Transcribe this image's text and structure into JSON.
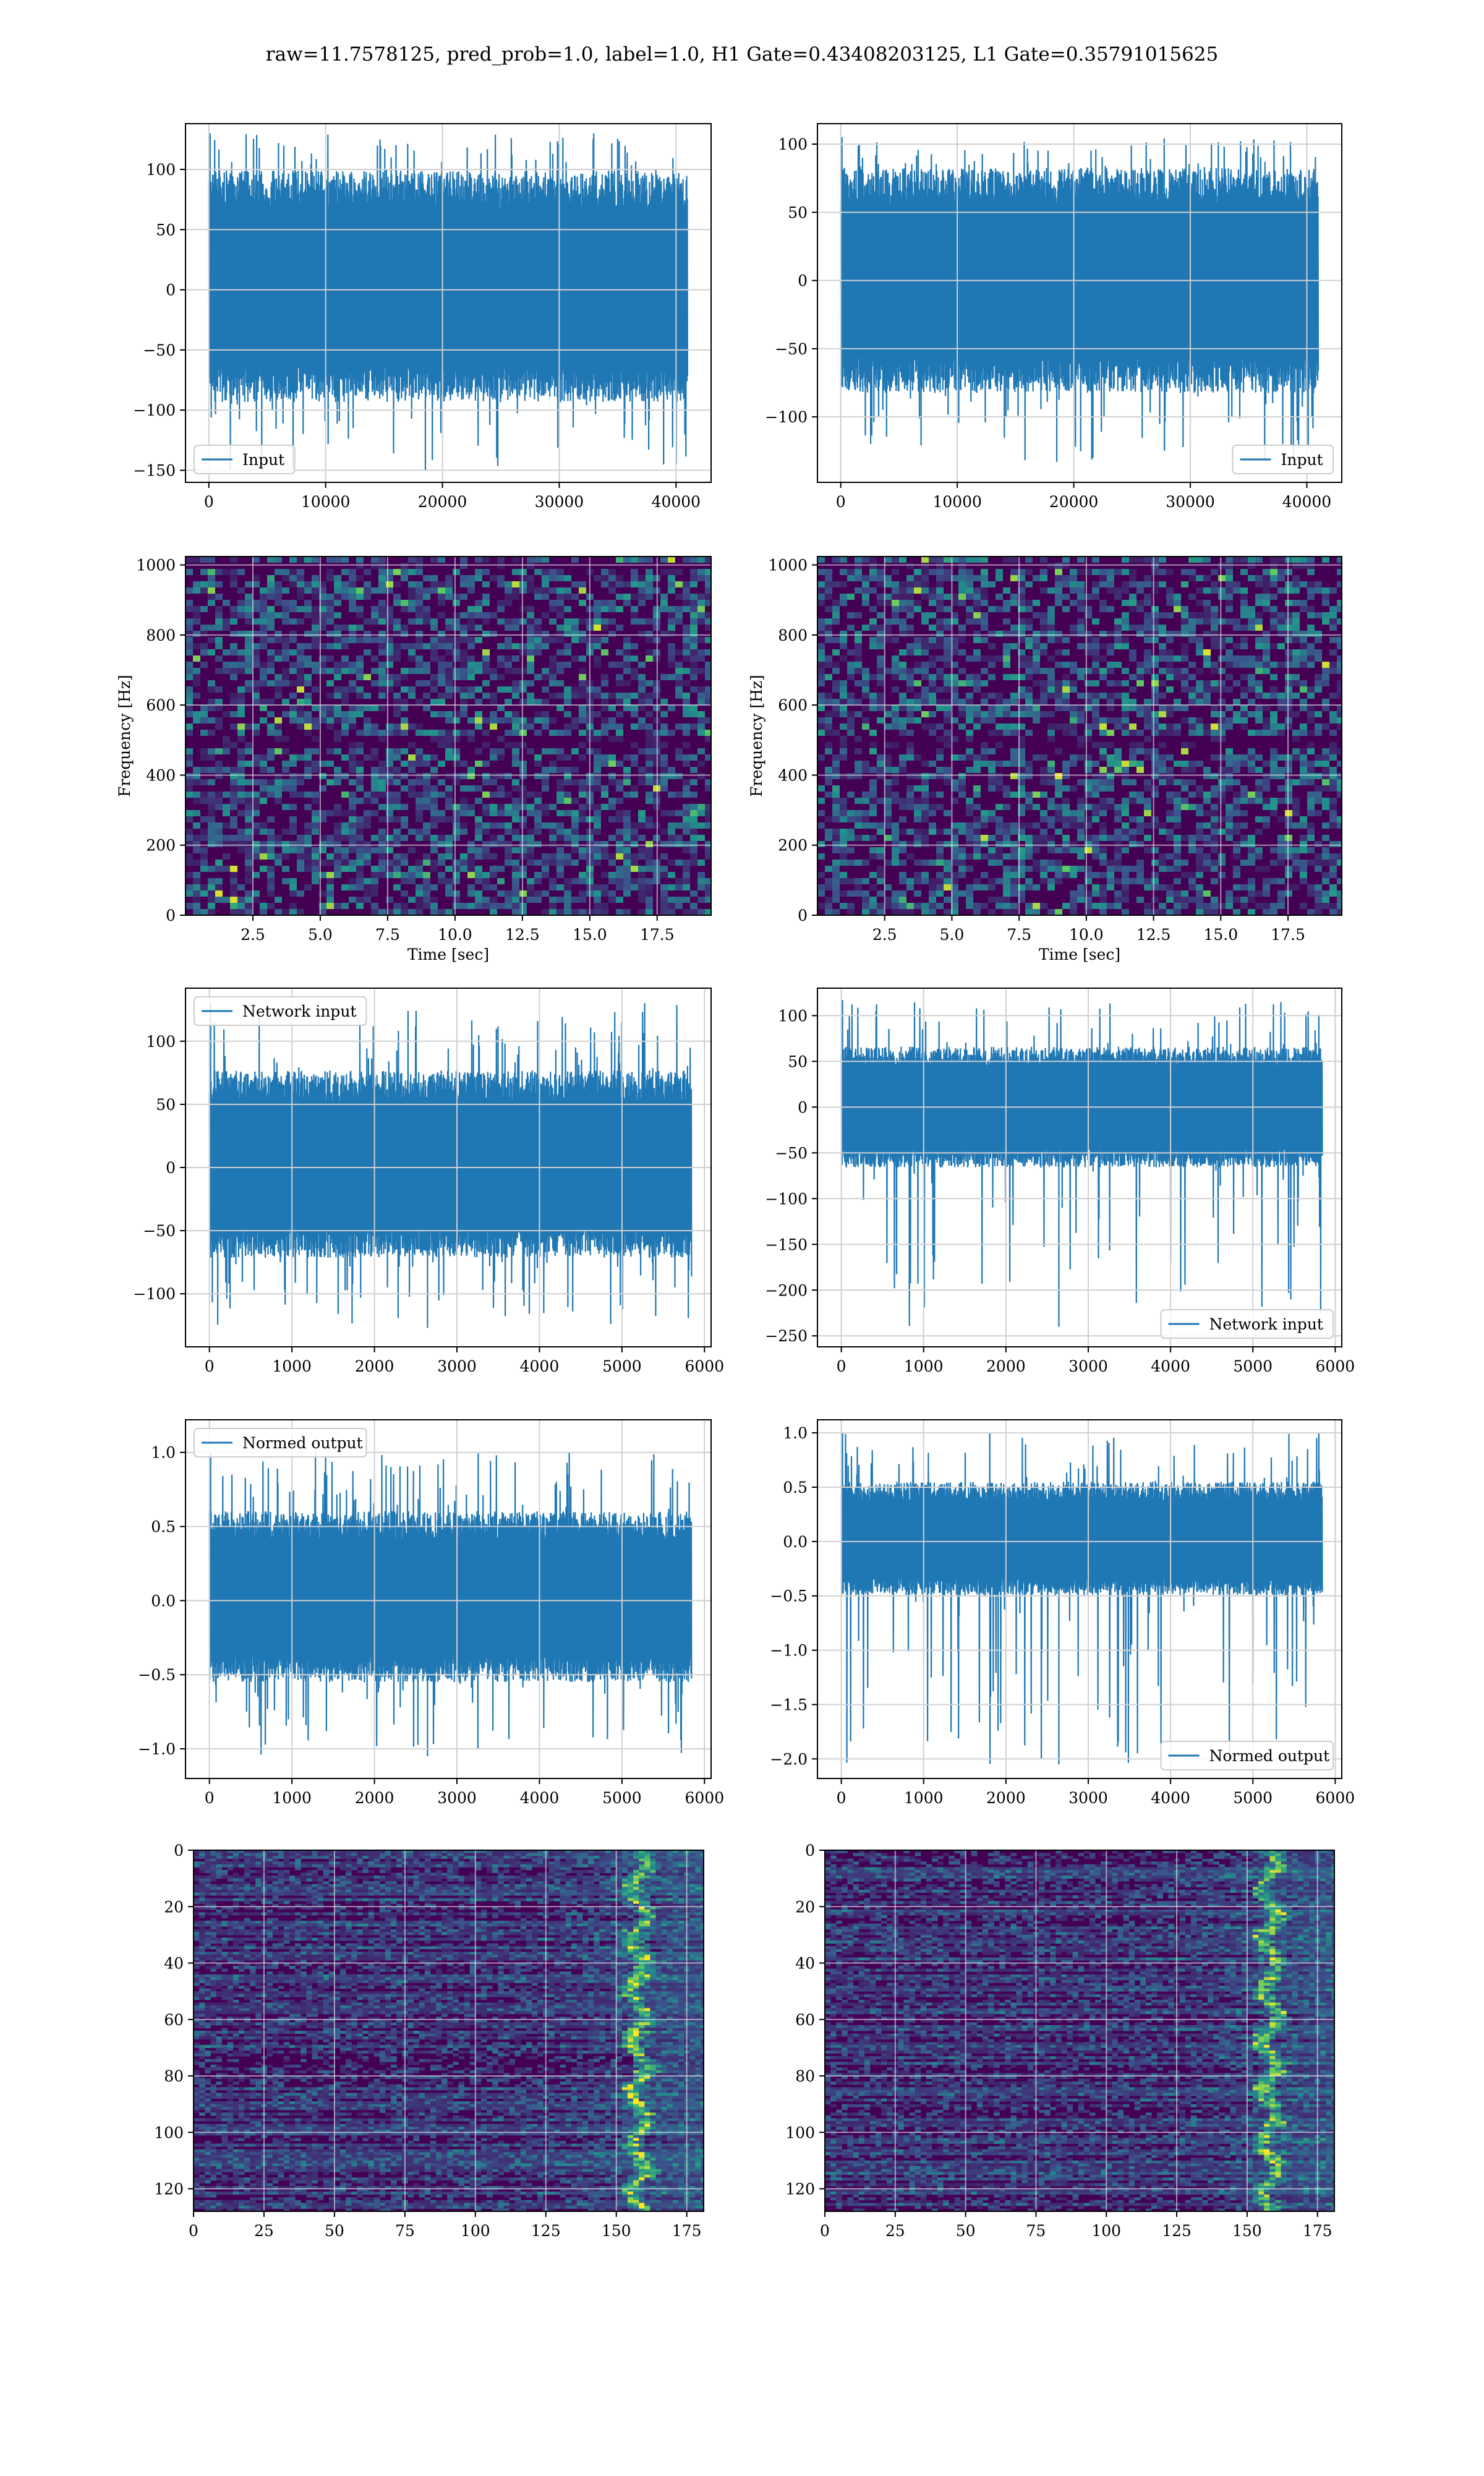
{
  "figure": {
    "suptitle": "raw=11.7578125, pred_prob=1.0, label=1.0, H1 Gate=0.43408203125, L1 Gate=0.35791015625"
  },
  "colors": {
    "line": "#1f77b4",
    "grid": "#d0d0d0",
    "viridis": [
      "#440154",
      "#3b528b",
      "#21918c",
      "#5ec962",
      "#fde725"
    ]
  },
  "chart_data": [
    {
      "id": "h1-input",
      "type": "line",
      "xlim": [
        -2000,
        43000
      ],
      "ylim": [
        -160,
        138
      ],
      "xticks": [
        0,
        10000,
        20000,
        30000,
        40000
      ],
      "yticks": [
        -150,
        -100,
        -50,
        0,
        50,
        100
      ],
      "legend": {
        "label": "Input",
        "loc": "lower-left"
      },
      "series": [
        {
          "x_range": [
            0,
            40960
          ],
          "band": [
            -85,
            90
          ],
          "extremes": [
            -150,
            130
          ]
        }
      ]
    },
    {
      "id": "l1-input",
      "type": "line",
      "xlim": [
        -2000,
        43000
      ],
      "ylim": [
        -148,
        115
      ],
      "xticks": [
        0,
        10000,
        20000,
        30000,
        40000
      ],
      "yticks": [
        -100,
        -50,
        0,
        50,
        100
      ],
      "legend": {
        "label": "Input",
        "loc": "lower-right"
      },
      "series": [
        {
          "x_range": [
            0,
            40960
          ],
          "band": [
            -75,
            75
          ],
          "extremes": [
            -133,
            105
          ]
        }
      ]
    },
    {
      "id": "h1-spectrogram",
      "type": "heatmap",
      "xlim": [
        0,
        19.5
      ],
      "ylim": [
        0,
        1024
      ],
      "xticks": [
        2.5,
        5.0,
        7.5,
        10.0,
        12.5,
        15.0,
        17.5
      ],
      "yticks": [
        0,
        200,
        400,
        600,
        800,
        1000
      ],
      "xlabel": "Time [sec]",
      "ylabel": "Frequency [Hz]"
    },
    {
      "id": "l1-spectrogram",
      "type": "heatmap",
      "xlim": [
        0,
        19.5
      ],
      "ylim": [
        0,
        1024
      ],
      "xticks": [
        2.5,
        5.0,
        7.5,
        10.0,
        12.5,
        15.0,
        17.5
      ],
      "yticks": [
        0,
        200,
        400,
        600,
        800,
        1000
      ],
      "xlabel": "Time [sec]",
      "ylabel": "Frequency [Hz]"
    },
    {
      "id": "h1-network-input",
      "type": "line",
      "xlim": [
        -290,
        6080
      ],
      "ylim": [
        -142,
        142
      ],
      "xticks": [
        0,
        1000,
        2000,
        3000,
        4000,
        5000,
        6000
      ],
      "yticks": [
        -100,
        -50,
        0,
        50,
        100
      ],
      "legend": {
        "label": "Network input",
        "loc": "upper-left"
      },
      "series": [
        {
          "x_range": [
            0,
            5840
          ],
          "band": [
            -65,
            70
          ],
          "extremes": [
            -127,
            131
          ]
        }
      ]
    },
    {
      "id": "l1-network-input",
      "type": "line",
      "xlim": [
        -290,
        6080
      ],
      "ylim": [
        -262,
        130
      ],
      "xticks": [
        0,
        1000,
        2000,
        3000,
        4000,
        5000,
        6000
      ],
      "yticks": [
        -250,
        -200,
        -150,
        -100,
        -50,
        0,
        50,
        100
      ],
      "legend": {
        "label": "Network input",
        "loc": "lower-right"
      },
      "series": [
        {
          "x_range": [
            0,
            5840
          ],
          "band": [
            -60,
            60
          ],
          "extremes": [
            -240,
            117
          ]
        }
      ]
    },
    {
      "id": "h1-normed-output",
      "type": "line",
      "xlim": [
        -290,
        6080
      ],
      "ylim": [
        -1.2,
        1.22
      ],
      "xticks": [
        0,
        1000,
        2000,
        3000,
        4000,
        5000,
        6000
      ],
      "yticks": [
        -1.0,
        -0.5,
        0.0,
        0.5,
        1.0
      ],
      "legend": {
        "label": "Normed output",
        "loc": "upper-left"
      },
      "series": [
        {
          "x_range": [
            0,
            5840
          ],
          "band": [
            -0.5,
            0.55
          ],
          "extremes": [
            -1.05,
            1.0
          ]
        }
      ]
    },
    {
      "id": "l1-normed-output",
      "type": "line",
      "xlim": [
        -290,
        6080
      ],
      "ylim": [
        -2.18,
        1.12
      ],
      "xticks": [
        0,
        1000,
        2000,
        3000,
        4000,
        5000,
        6000
      ],
      "yticks": [
        -2.0,
        -1.5,
        -1.0,
        -0.5,
        0.0,
        0.5,
        1.0
      ],
      "legend": {
        "label": "Normed output",
        "loc": "lower-right"
      },
      "series": [
        {
          "x_range": [
            0,
            5840
          ],
          "band": [
            -0.45,
            0.5
          ],
          "extremes": [
            -2.05,
            1.0
          ]
        }
      ]
    },
    {
      "id": "h1-network-image",
      "type": "heatmap",
      "xlim": [
        0,
        181
      ],
      "ylim": [
        128,
        0
      ],
      "xticks": [
        0,
        25,
        50,
        75,
        100,
        125,
        150,
        175
      ],
      "yticks": [
        0,
        20,
        40,
        60,
        80,
        100,
        120
      ],
      "ridge_x": 157
    },
    {
      "id": "l1-network-image",
      "type": "heatmap",
      "xlim": [
        0,
        181
      ],
      "ylim": [
        128,
        0
      ],
      "xticks": [
        0,
        25,
        50,
        75,
        100,
        125,
        150,
        175
      ],
      "yticks": [
        0,
        20,
        40,
        60,
        80,
        100,
        120
      ],
      "ridge_x": 157
    }
  ]
}
